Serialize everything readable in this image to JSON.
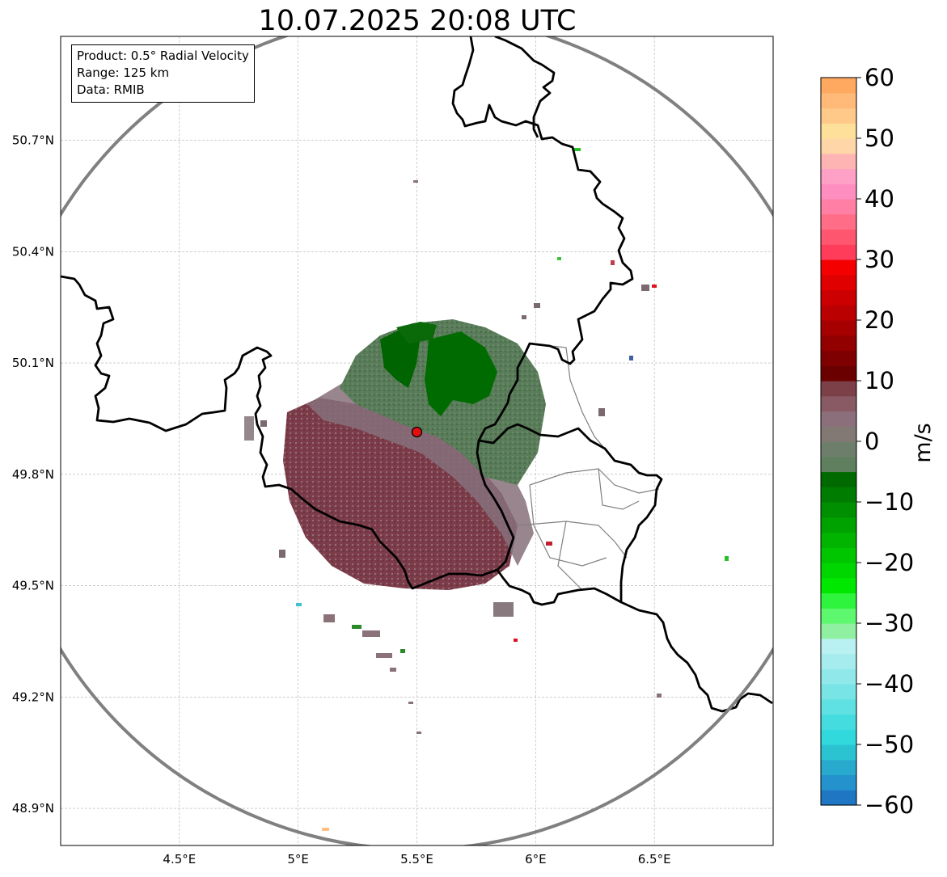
{
  "chart_data": {
    "type": "heatmap",
    "title": "10.07.2025 20:08 UTC",
    "info": {
      "product": "Product: 0.5° Radial Velocity",
      "range": "Range: 125 km",
      "source": "Data: RMIB"
    },
    "x_axis": {
      "range": [
        4.0,
        7.0
      ],
      "ticks": [
        4.5,
        5.0,
        5.5,
        6.0,
        6.5
      ],
      "tick_labels": [
        "4.5°E",
        "5°E",
        "5.5°E",
        "6°E",
        "6.5°E"
      ]
    },
    "y_axis": {
      "range": [
        48.8,
        50.98
      ],
      "ticks": [
        48.9,
        49.2,
        49.5,
        49.8,
        50.1,
        50.4,
        50.7
      ],
      "tick_labels": [
        "48.9°N",
        "49.2°N",
        "49.5°N",
        "49.8°N",
        "50.1°N",
        "50.4°N",
        "50.7°N"
      ]
    },
    "grid": true,
    "radar_site": {
      "lon": 5.5,
      "lat": 49.914
    },
    "range_ring_km": 125,
    "colorbar": {
      "label": "m/s",
      "min": -60,
      "max": 60,
      "ticks": [
        -60,
        -50,
        -40,
        -30,
        -20,
        -10,
        0,
        10,
        20,
        30,
        40,
        50,
        60
      ],
      "tick_labels": [
        "−60",
        "−50",
        "−40",
        "−30",
        "−20",
        "−10",
        "0",
        "10",
        "20",
        "30",
        "40",
        "50",
        "60"
      ]
    },
    "colors": {
      "ring": "#808080",
      "border": "#000000",
      "admin_border": "#808080",
      "site_marker": "#e01010",
      "inbound_dark": "#006400",
      "inbound_mid": "#4d7a4d",
      "near_zero": "#7c6a70",
      "outbound": "#7a3a48"
    }
  }
}
